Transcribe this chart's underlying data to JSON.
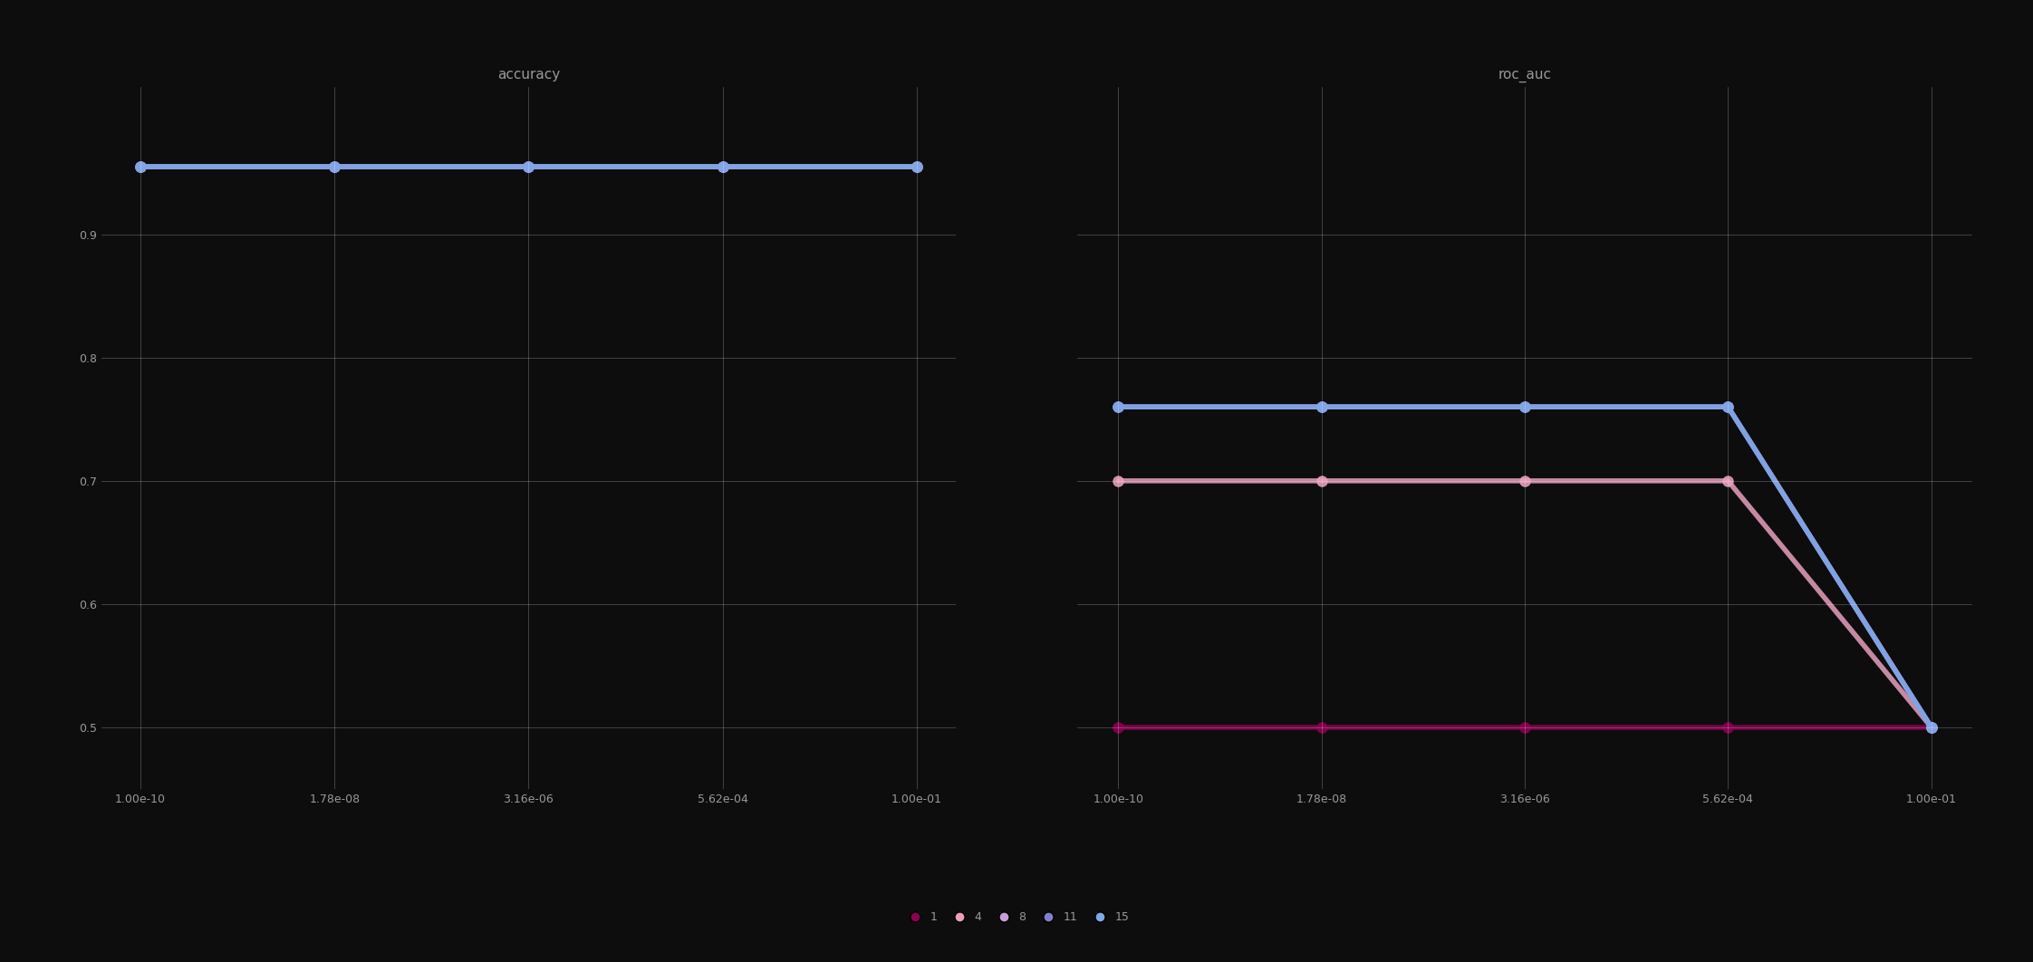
{
  "title_left": "accuracy",
  "title_right": "roc_auc",
  "background_color": "#0d0d0d",
  "grid_color": "#ffffff",
  "text_color": "#999999",
  "x_values": [
    1e-10,
    1.78e-08,
    3.16e-06,
    0.000562,
    0.1
  ],
  "x_ticks": [
    1e-10,
    1.78e-08,
    3.16e-06,
    0.000562,
    0.1
  ],
  "x_tick_labels": [
    "1.00e-10",
    "1.78e-08",
    "3.16e-06",
    "5.62e-04",
    "1.00e-01"
  ],
  "ylim": [
    0.45,
    1.02
  ],
  "y_ticks": [
    0.5,
    0.6,
    0.7,
    0.8,
    0.9
  ],
  "depths": [
    1,
    4,
    8,
    11,
    15
  ],
  "colors": [
    "#8b0050",
    "#e8a0be",
    "#c8a0d8",
    "#8080cc",
    "#80a8e8"
  ],
  "accuracy_values": {
    "1": [
      0.955,
      0.955,
      0.955,
      0.955,
      0.955
    ],
    "4": [
      0.955,
      0.955,
      0.955,
      0.955,
      0.955
    ],
    "8": [
      0.955,
      0.955,
      0.955,
      0.955,
      0.955
    ],
    "11": [
      0.955,
      0.955,
      0.955,
      0.955,
      0.955
    ],
    "15": [
      0.955,
      0.955,
      0.955,
      0.955,
      0.955
    ]
  },
  "roc_auc_values": {
    "1": [
      0.5,
      0.5,
      0.5,
      0.5,
      0.5
    ],
    "4": [
      0.7,
      0.7,
      0.7,
      0.7,
      0.5
    ],
    "8": [
      0.76,
      0.76,
      0.76,
      0.76,
      0.5
    ],
    "11": [
      0.76,
      0.76,
      0.76,
      0.76,
      0.5
    ],
    "15": [
      0.76,
      0.76,
      0.76,
      0.76,
      0.5
    ]
  },
  "legend_labels": [
    "1",
    "4",
    "8",
    "11",
    "15"
  ],
  "linewidth": 4.0,
  "markersize": 8,
  "line_alpha": 0.85,
  "title_fontsize": 11,
  "tick_fontsize": 9,
  "legend_fontsize": 9
}
